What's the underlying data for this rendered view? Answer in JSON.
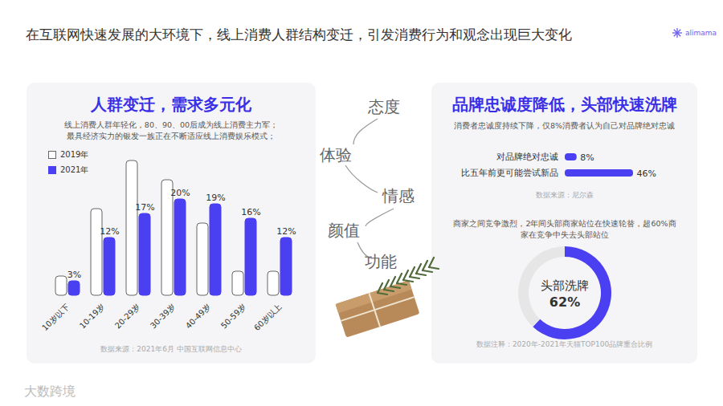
{
  "title": "在互联网快速发展的大环境下，线上消费人群结构变迁，引发消费行为和观念出现巨大变化",
  "logo": "alimama",
  "watermark": "大数跨境",
  "keywords": [
    "态度",
    "体验",
    "情感",
    "颜值",
    "功能"
  ],
  "chart_data": [
    {
      "type": "bar",
      "title": "人群变迁，需求多元化",
      "subtitle": [
        "线上消费人群年轻化，80、90、00后成为线上消费主力军；",
        "最具经济实力的银发一族正在不断适应线上消费娱乐模式；"
      ],
      "categories": [
        "10岁以下",
        "10-19岁",
        "20-29岁",
        "30-39岁",
        "40-49岁",
        "50-59岁",
        "60岁以上"
      ],
      "series": [
        {
          "name": "2019年",
          "color": "#ffffff",
          "values": [
            4,
            18,
            28,
            24,
            15,
            5,
            5
          ]
        },
        {
          "name": "2021年",
          "color": "#4b3ff2",
          "values": [
            3,
            12,
            17,
            20,
            19,
            16,
            12
          ],
          "value_labels": [
            "3%",
            "12%",
            "17%",
            "20%",
            "19%",
            "16%",
            "12%"
          ],
          "data_labels": true
        }
      ],
      "legend": "top-left",
      "tick_labels": "x",
      "source": "数据来源：2021年6月 中国互联网信息中心"
    },
    {
      "type": "bar",
      "orientation": "horizontal",
      "title": "品牌忠诚度降低，头部快速洗牌",
      "subtitle": "消费者忠诚度持续下降，仅8%消费者认为自己对品牌绝对忠诚",
      "categories": [
        "对品牌绝对忠诚",
        "比五年前更可能尝试新品"
      ],
      "values": [
        8,
        46
      ],
      "value_labels": [
        "8%",
        "46%"
      ],
      "color": "#4b3ff2",
      "data_labels": true,
      "tick_labels": "y",
      "source": "数据来源：尼尔森"
    },
    {
      "type": "pie",
      "subtitle": "商家之间竞争激烈，2年间头部商家站位在快速轮替，超60%商家在竞争中失去头部站位",
      "categories": [
        "头部洗牌",
        null
      ],
      "values": [
        62,
        38
      ],
      "value_labels": [
        "62%",
        null
      ],
      "colors": [
        "#4b3ff2",
        "#e6e6e6"
      ],
      "data_labels": true,
      "source": "数据注释：2020年-2021年天猫TOP100品牌重合比例"
    }
  ]
}
